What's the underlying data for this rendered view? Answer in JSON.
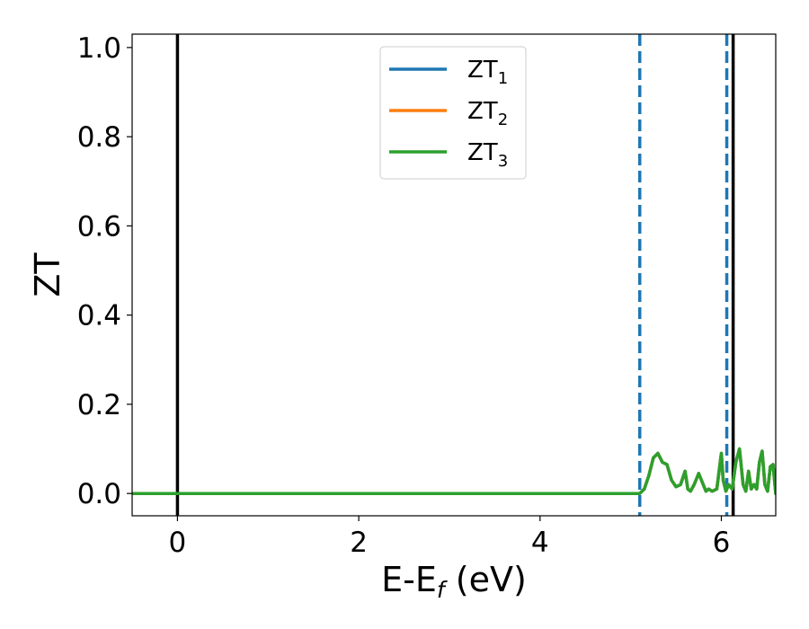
{
  "chart_data": {
    "type": "line",
    "title": "",
    "xlabel": "E-E",
    "xlabel_subscript": "f",
    "xlabel_suffix": " (eV)",
    "ylabel": "ZT",
    "xlim": [
      -0.5,
      6.6
    ],
    "ylim": [
      -0.05,
      1.03
    ],
    "x_ticks": [
      0,
      2,
      4,
      6
    ],
    "x_tick_labels": [
      "0",
      "2",
      "4",
      "6"
    ],
    "y_ticks": [
      0.0,
      0.2,
      0.4,
      0.6,
      0.8,
      1.0
    ],
    "y_tick_labels": [
      "0.0",
      "0.2",
      "0.4",
      "0.6",
      "0.8",
      "1.0"
    ],
    "grid": false,
    "legend_position": "top-center",
    "series": [
      {
        "name": "ZT",
        "name_subscript": "1",
        "color": "#1f77b4",
        "x": [
          -0.5,
          5.1,
          5.15,
          5.2,
          5.25,
          5.3,
          5.35,
          5.4,
          5.45,
          5.5,
          5.55,
          5.6,
          5.63,
          5.66,
          5.7,
          5.75,
          5.8,
          5.83,
          5.86,
          5.9,
          5.95,
          6.0,
          6.02,
          6.05,
          6.08,
          6.12,
          6.16,
          6.2,
          6.24,
          6.27,
          6.3,
          6.33,
          6.36,
          6.39,
          6.42,
          6.45,
          6.48,
          6.51,
          6.54,
          6.57,
          6.6
        ],
        "y": [
          0.0,
          0.0,
          0.01,
          0.04,
          0.08,
          0.09,
          0.07,
          0.065,
          0.03,
          0.015,
          0.02,
          0.05,
          0.01,
          0.005,
          0.02,
          0.045,
          0.02,
          0.005,
          0.01,
          0.005,
          0.01,
          0.09,
          0.03,
          0.005,
          0.02,
          0.01,
          0.07,
          0.1,
          0.02,
          0.005,
          0.05,
          0.01,
          0.02,
          0.01,
          0.07,
          0.095,
          0.02,
          0.005,
          0.06,
          0.065,
          0.0
        ]
      },
      {
        "name": "ZT",
        "name_subscript": "2",
        "color": "#ff7f0e",
        "x": [
          -0.5,
          5.1,
          5.15,
          5.2,
          5.25,
          5.3,
          5.35,
          5.4,
          5.45,
          5.5,
          5.55,
          5.6,
          5.63,
          5.66,
          5.7,
          5.75,
          5.8,
          5.83,
          5.86,
          5.9,
          5.95,
          6.0,
          6.02,
          6.05,
          6.08,
          6.12,
          6.16,
          6.2,
          6.24,
          6.27,
          6.3,
          6.33,
          6.36,
          6.39,
          6.42,
          6.45,
          6.48,
          6.51,
          6.54,
          6.57,
          6.6
        ],
        "y": [
          0.0,
          0.0,
          0.01,
          0.04,
          0.08,
          0.09,
          0.07,
          0.065,
          0.03,
          0.015,
          0.02,
          0.05,
          0.01,
          0.005,
          0.02,
          0.045,
          0.02,
          0.005,
          0.01,
          0.005,
          0.01,
          0.09,
          0.03,
          0.005,
          0.02,
          0.01,
          0.07,
          0.1,
          0.02,
          0.005,
          0.05,
          0.01,
          0.02,
          0.01,
          0.07,
          0.095,
          0.02,
          0.005,
          0.06,
          0.065,
          0.0
        ]
      },
      {
        "name": "ZT",
        "name_subscript": "3",
        "color": "#2ca02c",
        "x": [
          -0.5,
          5.1,
          5.15,
          5.2,
          5.25,
          5.3,
          5.35,
          5.4,
          5.45,
          5.5,
          5.55,
          5.6,
          5.63,
          5.66,
          5.7,
          5.75,
          5.8,
          5.83,
          5.86,
          5.9,
          5.95,
          6.0,
          6.02,
          6.05,
          6.08,
          6.12,
          6.16,
          6.2,
          6.24,
          6.27,
          6.3,
          6.33,
          6.36,
          6.39,
          6.42,
          6.45,
          6.48,
          6.51,
          6.54,
          6.57,
          6.6
        ],
        "y": [
          0.0,
          0.0,
          0.01,
          0.04,
          0.08,
          0.09,
          0.07,
          0.065,
          0.03,
          0.015,
          0.02,
          0.05,
          0.01,
          0.005,
          0.02,
          0.045,
          0.02,
          0.005,
          0.01,
          0.005,
          0.01,
          0.09,
          0.03,
          0.005,
          0.02,
          0.01,
          0.07,
          0.1,
          0.02,
          0.005,
          0.05,
          0.01,
          0.02,
          0.01,
          0.07,
          0.095,
          0.02,
          0.005,
          0.06,
          0.065,
          0.0
        ]
      }
    ],
    "vertical_lines": [
      {
        "x": 0.0,
        "style": "solid",
        "color": "#000000"
      },
      {
        "x": 6.13,
        "style": "solid",
        "color": "#000000"
      },
      {
        "x": 5.1,
        "style": "dashed",
        "color": "#1f77b4"
      },
      {
        "x": 6.06,
        "style": "dashed",
        "color": "#1f77b4"
      }
    ]
  }
}
